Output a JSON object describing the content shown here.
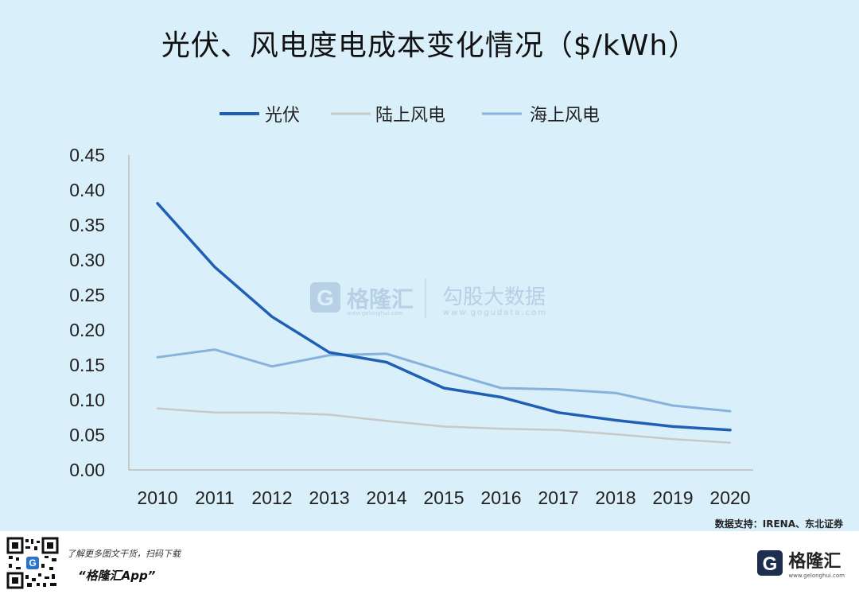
{
  "title": "光伏、风电度电成本变化情况（$/kWh）",
  "source": "数据支持：IRENA、东北证券",
  "watermark": {
    "brand": "格隆汇",
    "brand_url": "www.gelonghui.com",
    "partner": "勾股大数据",
    "partner_url": "www.gogudata.com"
  },
  "footer": {
    "promo_line": "了解更多图文干货，扫码下载",
    "app_name": "“格隆汇App”",
    "logo_text": "格隆汇",
    "logo_url": "www.gelonghui.com"
  },
  "colors": {
    "background": "#d9eff9",
    "solar": "#1f5fb4",
    "onshore_wind": "#c8c8c8",
    "offshore_wind": "#86b2de"
  },
  "chart_data": {
    "type": "line",
    "title": "光伏、风电度电成本变化情况（$/kWh）",
    "xlabel": "",
    "ylabel": "",
    "x": [
      "2010",
      "2011",
      "2012",
      "2013",
      "2014",
      "2015",
      "2016",
      "2017",
      "2018",
      "2019",
      "2020"
    ],
    "ylim": [
      0,
      0.45
    ],
    "yticks": [
      "0.00",
      "0.05",
      "0.10",
      "0.15",
      "0.20",
      "0.25",
      "0.30",
      "0.35",
      "0.40",
      "0.45"
    ],
    "grid": false,
    "legend_position": "top",
    "series": [
      {
        "name": "光伏",
        "color": "#1f5fb4",
        "values": [
          0.381,
          0.29,
          0.219,
          0.168,
          0.154,
          0.117,
          0.104,
          0.082,
          0.071,
          0.062,
          0.057
        ]
      },
      {
        "name": "陆上风电",
        "color": "#c8c8c8",
        "values": [
          0.088,
          0.082,
          0.082,
          0.079,
          0.07,
          0.062,
          0.059,
          0.057,
          0.051,
          0.044,
          0.039
        ]
      },
      {
        "name": "海上风电",
        "color": "#86b2de",
        "values": [
          0.161,
          0.172,
          0.148,
          0.164,
          0.166,
          0.141,
          0.117,
          0.115,
          0.11,
          0.092,
          0.084
        ]
      }
    ]
  }
}
